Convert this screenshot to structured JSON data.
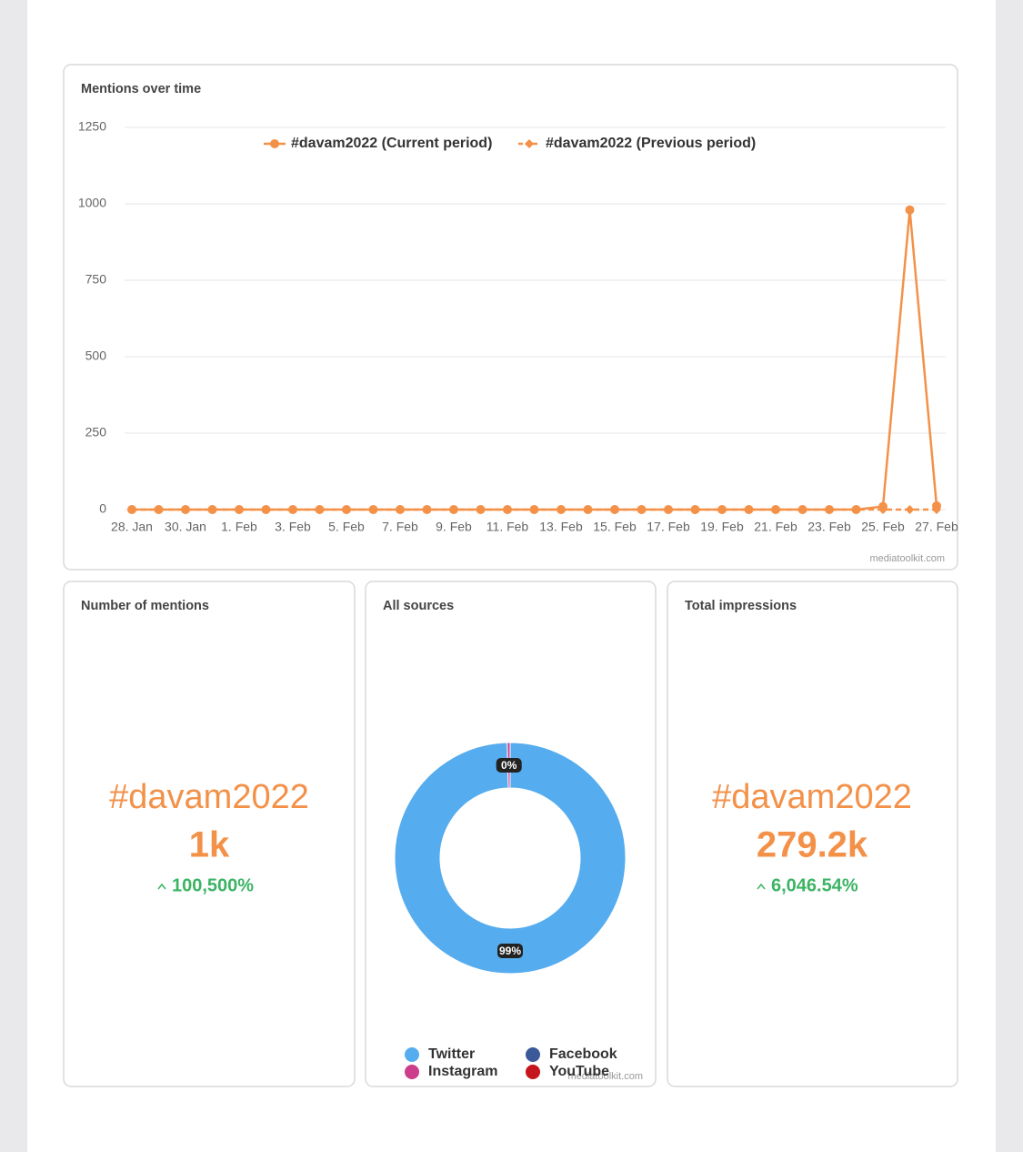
{
  "chart_data": [
    {
      "type": "line",
      "title": "Mentions over time",
      "categories": [
        "28. Jan",
        null,
        "30. Jan",
        null,
        "1. Feb",
        null,
        "3. Feb",
        null,
        "5. Feb",
        null,
        "7. Feb",
        null,
        "9. Feb",
        null,
        "11. Feb",
        null,
        "13. Feb",
        null,
        "15. Feb",
        null,
        "17. Feb",
        null,
        "19. Feb",
        null,
        "21. Feb",
        null,
        "23. Feb",
        null,
        "25. Feb",
        null,
        "27. Feb"
      ],
      "series": [
        {
          "name": "#davam2022 (Current period)",
          "color": "#f39149",
          "marker": "circle",
          "dashed": false,
          "values": [
            0,
            0,
            0,
            0,
            0,
            0,
            0,
            0,
            0,
            0,
            0,
            0,
            0,
            0,
            0,
            0,
            0,
            0,
            0,
            0,
            0,
            0,
            0,
            0,
            0,
            0,
            0,
            0,
            10,
            980,
            12
          ]
        },
        {
          "name": "#davam2022 (Previous period)",
          "color": "#f39149",
          "marker": "diamond",
          "dashed": true,
          "values": [
            0,
            0,
            0,
            0,
            0,
            0,
            0,
            0,
            0,
            0,
            0,
            0,
            0,
            0,
            0,
            0,
            0,
            0,
            0,
            0,
            0,
            0,
            0,
            0,
            0,
            0,
            0,
            0,
            0,
            0,
            0
          ]
        }
      ],
      "ylim": [
        0,
        1250
      ],
      "yticks": [
        0,
        250,
        500,
        750,
        1000,
        1250
      ],
      "grid": true,
      "legend": "top",
      "credit": "mediatoolkit.com"
    },
    {
      "type": "pie",
      "title": "All sources",
      "donut": true,
      "categories": [
        "Twitter",
        "Instagram",
        "Facebook",
        "YouTube"
      ],
      "colors": [
        "#55acee",
        "#cc3d8c",
        "#3b5998",
        "#c4161c"
      ],
      "values": [
        99.4,
        0.4,
        0,
        0
      ],
      "value_labels": [
        "99%",
        "0%",
        null,
        null
      ],
      "legend": "bottom",
      "credit": "mediatoolkit.com"
    }
  ],
  "kpis": [
    {
      "title": "Number of mentions",
      "name": "#davam2022",
      "value": "1k",
      "change": "100,500%"
    },
    {
      "title": "Total impressions",
      "name": "#davam2022",
      "value": "279.2k",
      "change": "6,046.54%"
    }
  ]
}
